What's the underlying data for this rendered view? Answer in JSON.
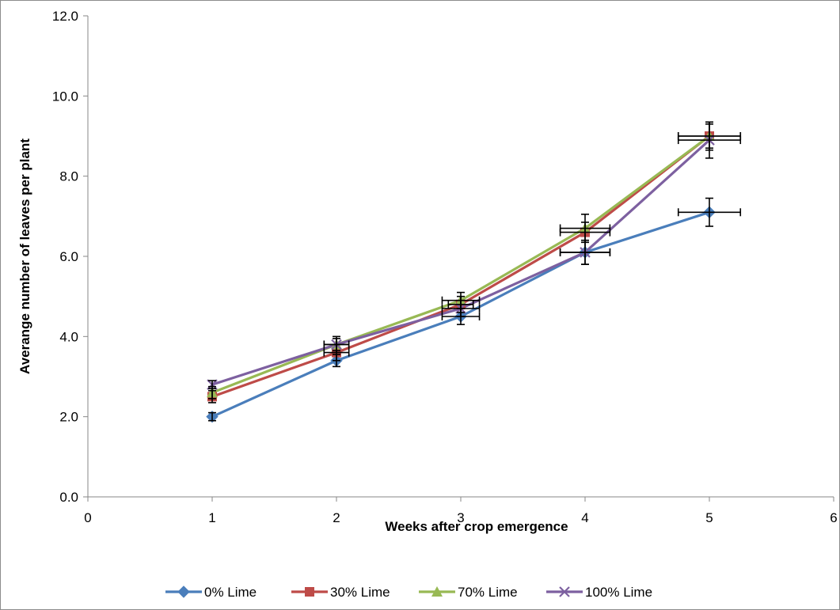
{
  "chart_data": {
    "type": "line",
    "title": "",
    "xlabel": "Weeks after crop emergence",
    "ylabel": "Averange number of leaves per plant",
    "xlim": [
      0,
      6
    ],
    "ylim": [
      0,
      12
    ],
    "x_ticks": [
      "0",
      "1",
      "2",
      "3",
      "4",
      "5",
      "6"
    ],
    "y_ticks": [
      "0.0",
      "2.0",
      "4.0",
      "6.0",
      "8.0",
      "10.0",
      "12.0"
    ],
    "grid": false,
    "legend_position": "bottom",
    "x": [
      1,
      2,
      3,
      4,
      5
    ],
    "series": [
      {
        "name": "0% Lime",
        "color": "#4a7ebb",
        "marker": "diamond",
        "values": [
          2.0,
          3.4,
          4.5,
          6.1,
          7.1
        ],
        "y_err": [
          0.1,
          0.15,
          0.2,
          0.3,
          0.35
        ],
        "x_err": [
          0.0,
          0.0,
          0.15,
          0.2,
          0.25
        ]
      },
      {
        "name": "30% Lime",
        "color": "#be4b48",
        "marker": "square",
        "values": [
          2.5,
          3.6,
          4.8,
          6.6,
          9.0
        ],
        "y_err": [
          0.15,
          0.2,
          0.2,
          0.25,
          0.3
        ],
        "x_err": [
          0.0,
          0.1,
          0.1,
          0.2,
          0.25
        ]
      },
      {
        "name": "70% Lime",
        "color": "#98b954",
        "marker": "triangle",
        "values": [
          2.6,
          3.8,
          4.9,
          6.7,
          9.0
        ],
        "y_err": [
          0.15,
          0.2,
          0.2,
          0.35,
          0.35
        ],
        "x_err": [
          0.0,
          0.1,
          0.15,
          0.2,
          0.25
        ]
      },
      {
        "name": "100% Lime",
        "color": "#7d60a0",
        "marker": "x",
        "values": [
          2.8,
          3.8,
          4.7,
          6.1,
          8.9
        ],
        "y_err": [
          0.1,
          0.15,
          0.2,
          0.3,
          0.45
        ],
        "x_err": [
          0.0,
          0.1,
          0.15,
          0.2,
          0.25
        ]
      }
    ]
  }
}
